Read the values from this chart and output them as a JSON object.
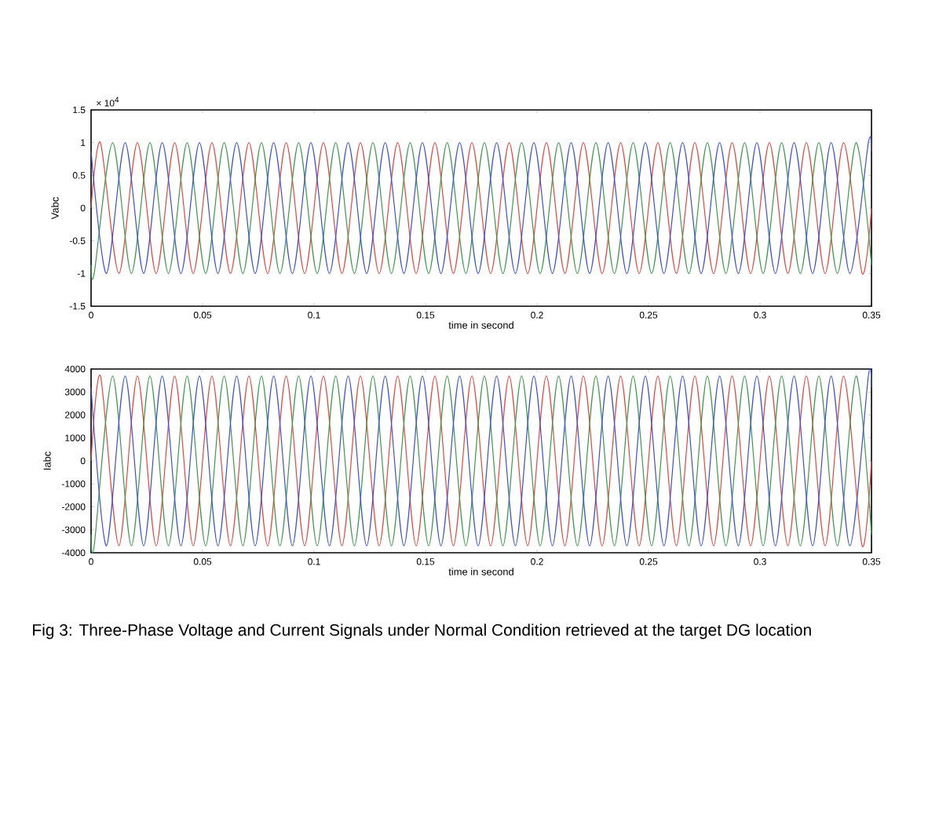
{
  "chart_data": [
    {
      "type": "line",
      "ylabel": "Vabc",
      "xlabel": "time in second",
      "xlim": [
        0,
        0.35
      ],
      "xticks": [
        0,
        0.05,
        0.1,
        0.15,
        0.2,
        0.25,
        0.3,
        0.35
      ],
      "ylim": [
        -1.5,
        1.5
      ],
      "yticks": [
        -1.5,
        -1,
        -0.5,
        0,
        0.5,
        1,
        1.5
      ],
      "annotations": [
        "× 10$^{4}$"
      ],
      "series": [
        {
          "color": "#e8453c",
          "x": [
            0,
            0.0042,
            0.0125,
            0.0208,
            0.0292,
            0.0375,
            0.0458,
            0.0542,
            0.0625,
            0.0708,
            0.0792,
            0.0875,
            0.0958,
            0.1042,
            0.1125,
            0.1208,
            0.1292,
            0.1375,
            0.1458,
            0.1542,
            0.1625,
            0.1708,
            0.1792,
            0.1875,
            0.1958,
            0.2042,
            0.2125,
            0.2208,
            0.2292,
            0.2375,
            0.2458,
            0.2542,
            0.2625,
            0.2708,
            0.2792,
            0.2875,
            0.2958,
            0.3042,
            0.3125,
            0.3208,
            0.3292,
            0.3375,
            0.3458,
            0.35
          ],
          "values": [
            0,
            1,
            -1,
            1,
            -1,
            1,
            -1,
            1,
            -1,
            1,
            -1,
            1,
            -1,
            1,
            -1,
            1,
            -1,
            1,
            -1,
            1,
            -1,
            1,
            -1,
            1,
            -1,
            1,
            -1,
            1,
            -1,
            1,
            -1,
            1,
            -1,
            1,
            -1,
            1,
            -1,
            1,
            -1,
            1,
            -1,
            1,
            -1,
            0
          ]
        },
        {
          "color": "#3a9a4a",
          "x": [
            0,
            0.0014,
            0.0097,
            0.0181,
            0.0264,
            0.0347,
            0.0431,
            0.0514,
            0.0597,
            0.0681,
            0.0764,
            0.0847,
            0.0931,
            0.1014,
            0.1097,
            0.1181,
            0.1264,
            0.1347,
            0.1431,
            0.1514,
            0.1597,
            0.1681,
            0.1764,
            0.1847,
            0.1931,
            0.2014,
            0.2097,
            0.2181,
            0.2264,
            0.2347,
            0.2431,
            0.2514,
            0.2597,
            0.2681,
            0.2764,
            0.2847,
            0.2931,
            0.3014,
            0.3097,
            0.3181,
            0.3264,
            0.3347,
            0.3431,
            0.35
          ],
          "values": [
            -0.87,
            -1,
            1,
            -1,
            1,
            -1,
            1,
            -1,
            1,
            -1,
            1,
            -1,
            1,
            -1,
            1,
            -1,
            1,
            -1,
            1,
            -1,
            1,
            -1,
            1,
            -1,
            1,
            -1,
            1,
            -1,
            1,
            -1,
            1,
            -1,
            1,
            -1,
            1,
            -1,
            1,
            -1,
            1,
            -1,
            1,
            -1,
            1,
            -0.87
          ]
        },
        {
          "color": "#3b4fd8",
          "x": [
            0,
            0.0069,
            0.0153,
            0.0236,
            0.0319,
            0.0403,
            0.0486,
            0.0569,
            0.0653,
            0.0736,
            0.0819,
            0.0903,
            0.0986,
            0.1069,
            0.1153,
            0.1236,
            0.1319,
            0.1403,
            0.1486,
            0.1569,
            0.1653,
            0.1736,
            0.1819,
            0.1903,
            0.1986,
            0.2069,
            0.2153,
            0.2236,
            0.2319,
            0.2403,
            0.2486,
            0.2569,
            0.2653,
            0.2736,
            0.2819,
            0.2903,
            0.2986,
            0.3069,
            0.3153,
            0.3236,
            0.3319,
            0.3403,
            0.3486,
            0.35
          ],
          "values": [
            0.87,
            -1,
            1,
            -1,
            1,
            -1,
            1,
            -1,
            1,
            -1,
            1,
            -1,
            1,
            -1,
            1,
            -1,
            1,
            -1,
            1,
            -1,
            1,
            -1,
            1,
            -1,
            1,
            -1,
            1,
            -1,
            1,
            -1,
            1,
            -1,
            1,
            -1,
            1,
            -1,
            1,
            -1,
            1,
            -1,
            1,
            -1,
            1,
            0.87
          ]
        }
      ]
    },
    {
      "type": "line",
      "ylabel": "Iabc",
      "xlabel": "time in second",
      "xlim": [
        0,
        0.35
      ],
      "xticks": [
        0,
        0.05,
        0.1,
        0.15,
        0.2,
        0.25,
        0.3,
        0.35
      ],
      "ylim": [
        -4000,
        4000
      ],
      "yticks": [
        -4000,
        -3000,
        -2000,
        -1000,
        0,
        1000,
        2000,
        3000,
        4000
      ],
      "annotations": [
        "Fig 3: Three-Phase Voltage and Current Signals under Normal Condition retrieved at the target DG location"
      ],
      "series": [
        {
          "color": "#e8453c",
          "x": [
            0,
            0.0042,
            0.0125,
            0.0208,
            0.0292,
            0.0375,
            0.0458,
            0.0542,
            0.0625,
            0.0708,
            0.0792,
            0.0875,
            0.0958,
            0.1042,
            0.1125,
            0.1208,
            0.1292,
            0.1375,
            0.1458,
            0.1542,
            0.1625,
            0.1708,
            0.1792,
            0.1875,
            0.1958,
            0.2042,
            0.2125,
            0.2208,
            0.2292,
            0.2375,
            0.2458,
            0.2542,
            0.2625,
            0.2708,
            0.2792,
            0.2875,
            0.2958,
            0.3042,
            0.3125,
            0.3208,
            0.3292,
            0.3375,
            0.3458,
            0.35
          ],
          "values": [
            0,
            3700,
            -3700,
            3700,
            -3700,
            3700,
            -3700,
            3700,
            -3700,
            3700,
            -3700,
            3700,
            -3700,
            3700,
            -3700,
            3700,
            -3700,
            3700,
            -3700,
            3700,
            -3700,
            3700,
            -3700,
            3700,
            -3700,
            3700,
            -3700,
            3700,
            -3700,
            3700,
            -3700,
            3700,
            -3700,
            3700,
            -3700,
            3700,
            -3700,
            3700,
            -3700,
            3700,
            -3700,
            3700,
            -3700,
            0
          ]
        },
        {
          "color": "#3a9a4a",
          "x": [
            0,
            0.0014,
            0.0097,
            0.0181,
            0.0264,
            0.0347,
            0.0431,
            0.0514,
            0.0597,
            0.0681,
            0.0764,
            0.0847,
            0.0931,
            0.1014,
            0.1097,
            0.1181,
            0.1264,
            0.1347,
            0.1431,
            0.1514,
            0.1597,
            0.1681,
            0.1764,
            0.1847,
            0.1931,
            0.2014,
            0.2097,
            0.2181,
            0.2264,
            0.2347,
            0.2431,
            0.2514,
            0.2597,
            0.2681,
            0.2764,
            0.2847,
            0.2931,
            0.3014,
            0.3097,
            0.3181,
            0.3264,
            0.3347,
            0.3431,
            0.35
          ],
          "values": [
            -3200,
            -3700,
            3700,
            -3700,
            3700,
            -3700,
            3700,
            -3700,
            3700,
            -3700,
            3700,
            -3700,
            3700,
            -3700,
            3700,
            -3700,
            3700,
            -3700,
            3700,
            -3700,
            3700,
            -3700,
            3700,
            -3700,
            3700,
            -3700,
            3700,
            -3700,
            3700,
            -3700,
            3700,
            -3700,
            3700,
            -3700,
            3700,
            -3700,
            3700,
            -3700,
            3700,
            -3700,
            3700,
            -3700,
            3700,
            -3200
          ]
        },
        {
          "color": "#3b4fd8",
          "x": [
            0,
            0.0069,
            0.0153,
            0.0236,
            0.0319,
            0.0403,
            0.0486,
            0.0569,
            0.0653,
            0.0736,
            0.0819,
            0.0903,
            0.0986,
            0.1069,
            0.1153,
            0.1236,
            0.1319,
            0.1403,
            0.1486,
            0.1569,
            0.1653,
            0.1736,
            0.1819,
            0.1903,
            0.1986,
            0.2069,
            0.2153,
            0.2236,
            0.2319,
            0.2403,
            0.2486,
            0.2569,
            0.2653,
            0.2736,
            0.2819,
            0.2903,
            0.2986,
            0.3069,
            0.3153,
            0.3236,
            0.3319,
            0.3403,
            0.3486,
            0.35
          ],
          "values": [
            3200,
            -3700,
            3700,
            -3700,
            3700,
            -3700,
            3700,
            -3700,
            3700,
            -3700,
            3700,
            -3700,
            3700,
            -3700,
            3700,
            -3700,
            3700,
            -3700,
            3700,
            -3700,
            3700,
            -3700,
            3700,
            -3700,
            3700,
            -3700,
            3700,
            -3700,
            3700,
            -3700,
            3700,
            -3700,
            3700,
            -3700,
            3700,
            -3700,
            3700,
            -3700,
            3700,
            -3700,
            3700,
            -3700,
            3700,
            3200
          ]
        }
      ]
    }
  ]
}
